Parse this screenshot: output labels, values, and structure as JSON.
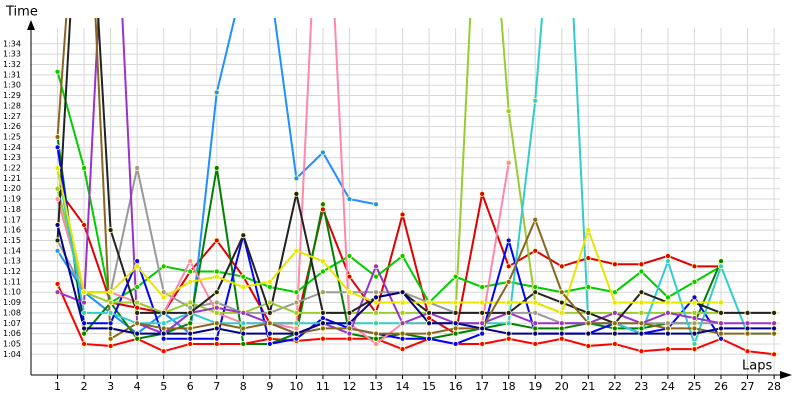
{
  "chart_data": {
    "type": "line",
    "y_label": "Time",
    "x_label": "Laps",
    "x": [
      1,
      2,
      3,
      4,
      5,
      6,
      7,
      8,
      9,
      10,
      11,
      12,
      13,
      14,
      15,
      16,
      17,
      18,
      19,
      20,
      21,
      22,
      23,
      24,
      25,
      26,
      27,
      28
    ],
    "xlim": [
      0,
      28.6
    ],
    "xticks": [
      1,
      2,
      3,
      4,
      5,
      6,
      7,
      8,
      9,
      10,
      11,
      12,
      13,
      14,
      15,
      16,
      17,
      18,
      19,
      20,
      21,
      22,
      23,
      24,
      25,
      26,
      27,
      28
    ],
    "ylim": [
      62,
      96.3
    ],
    "yticks": [
      {
        "value": 64,
        "label": "1:04"
      },
      {
        "value": 65,
        "label": "1:05"
      },
      {
        "value": 66,
        "label": "1:06"
      },
      {
        "value": 67,
        "label": "1:07"
      },
      {
        "value": 68,
        "label": "1:08"
      },
      {
        "value": 69,
        "label": "1:09"
      },
      {
        "value": 70,
        "label": "1:10"
      },
      {
        "value": 71,
        "label": "1:11"
      },
      {
        "value": 72,
        "label": "1:12"
      },
      {
        "value": 73,
        "label": "1:13"
      },
      {
        "value": 74,
        "label": "1:14"
      },
      {
        "value": 75,
        "label": "1:15"
      },
      {
        "value": 76,
        "label": "1:16"
      },
      {
        "value": 77,
        "label": "1:17"
      },
      {
        "value": 78,
        "label": "1:18"
      },
      {
        "value": 79,
        "label": "1:19"
      },
      {
        "value": 80,
        "label": "1:20"
      },
      {
        "value": 81,
        "label": "1:21"
      },
      {
        "value": 82,
        "label": "1:22"
      },
      {
        "value": 83,
        "label": "1:23"
      },
      {
        "value": 84,
        "label": "1:24"
      },
      {
        "value": 85,
        "label": "1:25"
      },
      {
        "value": 86,
        "label": "1:26"
      },
      {
        "value": 87,
        "label": "1:27"
      },
      {
        "value": 88,
        "label": "1:28"
      },
      {
        "value": 89,
        "label": "1:29"
      },
      {
        "value": 90,
        "label": "1:30"
      },
      {
        "value": 91,
        "label": "1:31"
      },
      {
        "value": 92,
        "label": "1:32"
      },
      {
        "value": 93,
        "label": "1:33"
      },
      {
        "value": 94,
        "label": "1:34"
      }
    ],
    "grid": true,
    "series": [
      {
        "color": "#ff0000",
        "values": [
          70.8,
          65,
          64.8,
          65.5,
          64.3,
          65,
          65,
          65,
          65.5,
          65.3,
          65.5,
          65.5,
          65.5,
          64.5,
          65.5,
          65,
          65,
          65.5,
          65,
          65.5,
          64.8,
          65,
          64.3,
          64.5,
          64.5,
          65.5,
          64.3,
          64
        ]
      },
      {
        "color": "#e00000",
        "values": [
          80,
          76.5,
          69,
          68.5,
          68,
          72,
          75,
          71.5,
          67,
          67,
          78,
          71.5,
          68,
          77.5,
          67.5,
          66,
          79.5,
          72.5,
          74,
          72.5,
          73.3,
          72.7,
          72.7,
          73.5,
          72.5,
          72.5,
          null,
          null
        ]
      },
      {
        "color": "#1e90ff",
        "values": [
          74,
          70,
          68,
          66,
          68,
          66,
          89.3,
          100,
          100,
          81,
          83.5,
          79,
          78.5,
          null,
          null,
          null,
          null,
          null,
          null,
          null,
          null,
          null,
          null,
          null,
          null,
          null,
          null,
          null
        ]
      },
      {
        "color": "#00cc00",
        "values": [
          91.3,
          82,
          69,
          70.5,
          72.5,
          72,
          72,
          71.5,
          70.5,
          70,
          72,
          73.5,
          71.5,
          73.5,
          69,
          71.5,
          70.5,
          71,
          70.5,
          70,
          70.5,
          70,
          72,
          69.5,
          71,
          72.5,
          null,
          null
        ]
      },
      {
        "color": "#008000",
        "values": [
          85,
          66,
          69,
          65.5,
          66,
          67,
          82,
          65,
          65,
          66,
          78.5,
          66,
          65.5,
          66,
          65.5,
          66,
          66.5,
          67,
          66.5,
          66.5,
          67,
          66.5,
          66.5,
          67,
          67,
          73,
          null,
          null
        ]
      },
      {
        "color": "#0000ff",
        "values": [
          84,
          67,
          67,
          73,
          65.5,
          65.5,
          65.5,
          75.5,
          65,
          65.5,
          67.5,
          66.5,
          66,
          65.5,
          65.5,
          65,
          66,
          75,
          66,
          66,
          66,
          67,
          66,
          66.5,
          69.5,
          65.5,
          null,
          null
        ]
      },
      {
        "color": "#999999",
        "values": [
          75,
          70,
          70,
          82,
          70,
          68.5,
          69,
          68,
          68,
          69,
          70,
          70,
          70,
          70,
          69,
          68,
          68,
          68,
          68,
          67,
          67,
          67,
          67,
          67,
          67,
          67,
          null,
          null
        ]
      },
      {
        "color": "#ff88aa",
        "values": [
          79,
          70,
          70,
          69,
          68,
          73,
          68,
          67,
          67,
          66.5,
          120,
          67,
          65,
          67,
          67,
          67,
          67,
          82.5,
          null,
          null,
          null,
          null,
          null,
          null,
          null,
          null,
          null,
          null
        ]
      },
      {
        "color": "#99cc33",
        "values": [
          80,
          70,
          69,
          69,
          68,
          69,
          68,
          68,
          69,
          68,
          68,
          68,
          68,
          68,
          68,
          68,
          120,
          87.5,
          69,
          68,
          68,
          68,
          68,
          68,
          68,
          68,
          68,
          68
        ]
      },
      {
        "color": "#33cccc",
        "values": [
          82,
          68,
          68,
          67,
          67,
          68,
          67,
          67,
          67,
          67,
          67,
          67,
          67,
          67,
          67,
          67,
          67,
          67,
          88.5,
          120,
          67,
          67,
          66,
          73,
          65,
          72.5,
          66,
          66
        ]
      },
      {
        "color": "#9933cc",
        "values": [
          70,
          69,
          120,
          67,
          66,
          68,
          68.5,
          68,
          67,
          66,
          67,
          66,
          72.5,
          67,
          68,
          67,
          67,
          68,
          67,
          67,
          67,
          68,
          67,
          68,
          67.5,
          67,
          67,
          67
        ]
      },
      {
        "color": "#222222",
        "values": [
          75,
          120,
          76,
          68,
          68,
          68,
          70,
          75.5,
          68,
          79.5,
          68,
          68,
          69.5,
          70,
          68,
          68,
          68,
          68,
          70,
          69,
          68,
          67,
          70,
          69,
          69,
          68,
          68,
          68
        ]
      },
      {
        "color": "#e6e600",
        "values": [
          82,
          70,
          70,
          72.5,
          69.5,
          71,
          71.5,
          70.5,
          71,
          74,
          73,
          70,
          69,
          69,
          69,
          69,
          69,
          69,
          69,
          68,
          76,
          69,
          69,
          69,
          69,
          69,
          null,
          null
        ]
      },
      {
        "color": "#886622",
        "values": [
          85,
          120,
          65.5,
          67,
          66.5,
          66.5,
          67,
          66.5,
          67,
          66,
          66.5,
          66.5,
          66,
          66,
          66,
          66.5,
          66.5,
          71,
          77,
          70,
          67,
          67,
          67,
          66.5,
          66.5,
          66,
          66,
          66
        ]
      },
      {
        "color": "#000088",
        "values": [
          76.5,
          66.5,
          66.5,
          66,
          66,
          66,
          66.5,
          66,
          66,
          66,
          67,
          67,
          69.5,
          70,
          67,
          67,
          66.5,
          66,
          66,
          66,
          66,
          66,
          66,
          66,
          66,
          66.5,
          66.5,
          66.5
        ]
      }
    ]
  }
}
